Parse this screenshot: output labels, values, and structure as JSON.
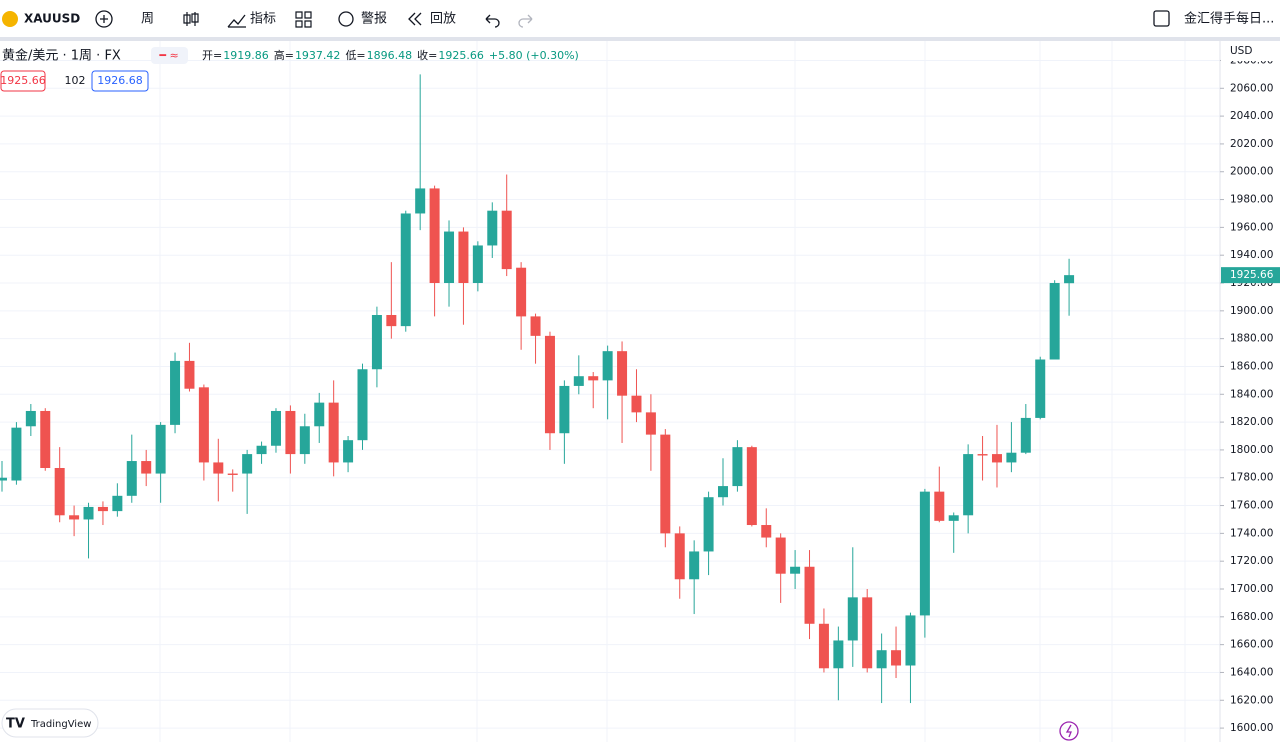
{
  "ui": {
    "symbol": "XAUUSD",
    "interval": "周",
    "indicators": "指标",
    "alert": "警报",
    "replay": "回放",
    "right_title": "金汇得手每日...",
    "pair_title": "黄金/美元 · 1周 · FX",
    "legend": [
      {
        "label": "开=",
        "value": "1919.86"
      },
      {
        "label": "高=",
        "value": "1937.42"
      },
      {
        "label": "低=",
        "value": "1896.48"
      },
      {
        "label": "收=",
        "value": "1925.66"
      }
    ],
    "change": "+5.80 (+0.30%)",
    "sell": "1925.66",
    "spread": "102",
    "buy": "1926.68",
    "currency": "USD",
    "brand": "TradingView"
  },
  "chart_data": {
    "type": "candlestick",
    "up_color": "#26a69a",
    "down_color": "#ef5350",
    "ylim": [
      1590,
      2094
    ],
    "yticks": [
      {
        "value": 1600,
        "label": "1600.00"
      },
      {
        "value": 1620,
        "label": "1620.00"
      },
      {
        "value": 1640,
        "label": "1640.00"
      },
      {
        "value": 1660,
        "label": "1660.00"
      },
      {
        "value": 1680,
        "label": "1680.00"
      },
      {
        "value": 1700,
        "label": "1700.00"
      },
      {
        "value": 1720,
        "label": "1720.00"
      },
      {
        "value": 1740,
        "label": "1740.00"
      },
      {
        "value": 1760,
        "label": "1760.00"
      },
      {
        "value": 1780,
        "label": "1780.00"
      },
      {
        "value": 1800,
        "label": "1800.00"
      },
      {
        "value": 1820,
        "label": "1820.00"
      },
      {
        "value": 1840,
        "label": "1840.00"
      },
      {
        "value": 1860,
        "label": "1860.00"
      },
      {
        "value": 1880,
        "label": "1880.00"
      },
      {
        "value": 1900,
        "label": "1900.00"
      },
      {
        "value": 1920,
        "label": "1920.00"
      },
      {
        "value": 1940,
        "label": "1940.00"
      },
      {
        "value": 1960,
        "label": "1960.00"
      },
      {
        "value": 1980,
        "label": "1980.00"
      },
      {
        "value": 2000,
        "label": "2000.00"
      },
      {
        "value": 2020,
        "label": "2020.00"
      },
      {
        "value": 2040,
        "label": "2040.00"
      },
      {
        "value": 2060,
        "label": "2060.00"
      },
      {
        "value": 2080,
        "label": "2080.00"
      }
    ],
    "grid": true,
    "open": [
      1778,
      1778,
      1817,
      1828,
      1787,
      1753,
      1750,
      1759,
      1756,
      1767,
      1792,
      1783,
      1818,
      1864,
      1845,
      1791,
      1783,
      1783,
      1797,
      1803,
      1828,
      1797,
      1817,
      1834,
      1791,
      1807,
      1858,
      1897,
      1889,
      1970,
      1988,
      1920,
      1957,
      1920,
      1947,
      1972,
      1931,
      1896,
      1882,
      1812,
      1846,
      1853,
      1850,
      1871,
      1839,
      1827,
      1811,
      1740,
      1707,
      1727,
      1766,
      1774,
      1802,
      1746,
      1737,
      1711,
      1716,
      1675,
      1643,
      1663,
      1694,
      1643,
      1656,
      1645,
      1681,
      1770,
      1749,
      1753,
      1797,
      1797,
      1791,
      1798,
      1823,
      1865,
      1919.86
    ],
    "high": [
      1792,
      1820,
      1833,
      1830,
      1802,
      1760,
      1762,
      1763,
      1776,
      1811,
      1800,
      1820,
      1870,
      1877,
      1847,
      1808,
      1786,
      1800,
      1806,
      1830,
      1832,
      1826,
      1841,
      1850,
      1810,
      1862,
      1903,
      1935,
      1972,
      2070,
      1990,
      1965,
      1960,
      1950,
      1978,
      1998,
      1935,
      1898,
      1885,
      1850,
      1868,
      1856,
      1875,
      1878,
      1858,
      1840,
      1815,
      1745,
      1735,
      1770,
      1794,
      1807,
      1803,
      1758,
      1740,
      1728,
      1728,
      1686,
      1673,
      1730,
      1700,
      1668,
      1673,
      1683,
      1772,
      1788,
      1755,
      1804,
      1810,
      1818,
      1820,
      1833,
      1867,
      1922,
      1937.42
    ],
    "low": [
      1770,
      1775,
      1810,
      1785,
      1748,
      1738,
      1722,
      1746,
      1752,
      1762,
      1774,
      1762,
      1812,
      1842,
      1778,
      1763,
      1770,
      1754,
      1790,
      1798,
      1783,
      1790,
      1805,
      1781,
      1784,
      1800,
      1845,
      1880,
      1885,
      1958,
      1896,
      1903,
      1890,
      1914,
      1938,
      1925,
      1872,
      1862,
      1800,
      1790,
      1840,
      1830,
      1822,
      1805,
      1820,
      1785,
      1730,
      1693,
      1682,
      1710,
      1760,
      1770,
      1745,
      1730,
      1690,
      1700,
      1664,
      1640,
      1620,
      1644,
      1640,
      1618,
      1636,
      1618,
      1665,
      1748,
      1726,
      1740,
      1778,
      1773,
      1784,
      1797,
      1822,
      1865,
      1896.48
    ],
    "close": [
      1780,
      1816,
      1828,
      1787,
      1753,
      1750,
      1759,
      1756,
      1767,
      1792,
      1783,
      1818,
      1864,
      1844,
      1791,
      1783,
      1782,
      1797,
      1803,
      1828,
      1797,
      1817,
      1834,
      1791,
      1807,
      1858,
      1897,
      1889,
      1970,
      1988,
      1920,
      1957,
      1920,
      1947,
      1972,
      1930,
      1896,
      1882,
      1812,
      1846,
      1853,
      1850,
      1871,
      1839,
      1827,
      1811,
      1740,
      1707,
      1727,
      1766,
      1774,
      1802,
      1746,
      1737,
      1711,
      1716,
      1675,
      1643,
      1663,
      1694,
      1643,
      1656,
      1645,
      1681,
      1770,
      1749,
      1753,
      1797,
      1796,
      1791,
      1798,
      1823,
      1865,
      1920,
      1925.66
    ]
  }
}
